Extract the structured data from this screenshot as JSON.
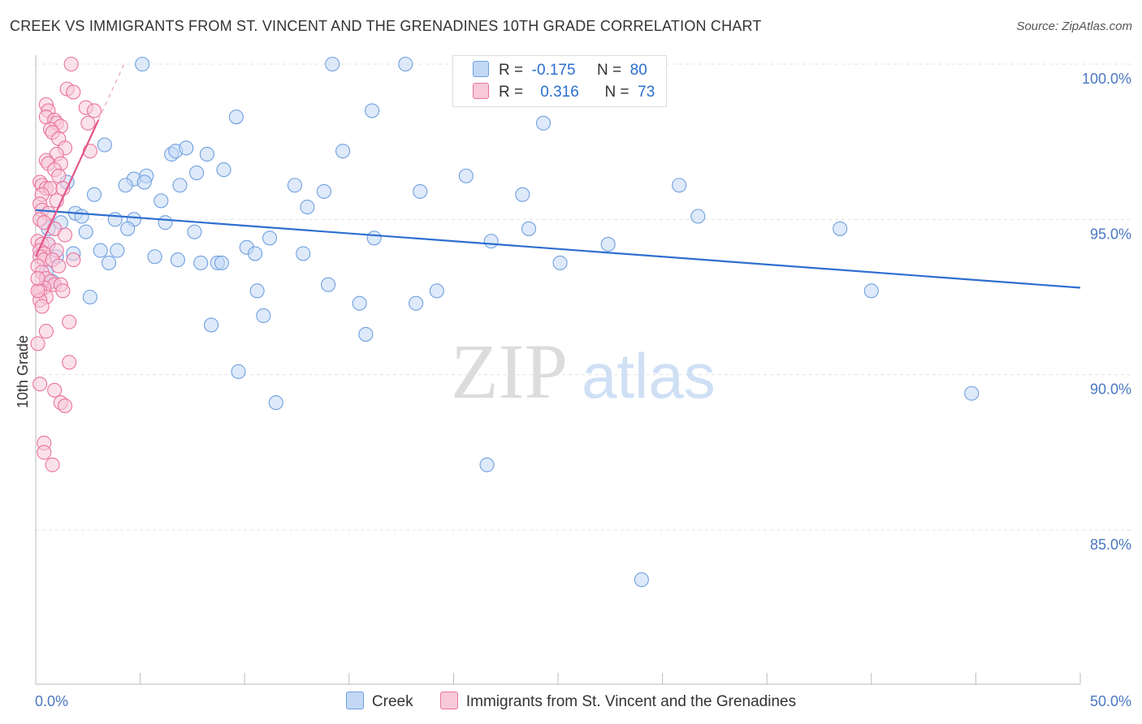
{
  "title": "CREEK VS IMMIGRANTS FROM ST. VINCENT AND THE GRENADINES 10TH GRADE CORRELATION CHART",
  "source": "Source: ZipAtlas.com",
  "watermark": {
    "zip": "ZIP",
    "atlas": "atlas"
  },
  "legend_stats": [
    {
      "r_label": "R =",
      "r_value": "-0.175",
      "n_label": "N =",
      "n_value": "80",
      "color": "#a9c8f0"
    },
    {
      "r_label": "R =",
      "r_value": "0.316",
      "n_label": "N =",
      "n_value": "73",
      "color": "#f6b6cc"
    }
  ],
  "colors": {
    "creek": "#6f9fe0",
    "creek_fill": "#c2d8f5",
    "creek_line": "#2f6fcf",
    "svg": "#e9739d",
    "svg_fill": "#f8c9d9",
    "svg_line": "#e0578b",
    "grid": "#e3e3e3",
    "axis_text": "#4a78c2"
  },
  "chart_data": {
    "type": "scatter",
    "title": "CREEK VS IMMIGRANTS FROM ST. VINCENT AND THE GRENADINES 10TH GRADE CORRELATION CHART",
    "xlabel": "",
    "ylabel": "10th Grade",
    "xlim": [
      0,
      50
    ],
    "ylim": [
      80,
      100.5
    ],
    "x_tick_labels": [
      "0.0%",
      "50.0%"
    ],
    "y_ticks": [
      85,
      90,
      95,
      100
    ],
    "y_tick_labels": [
      "85.0%",
      "90.0%",
      "95.0%",
      "100.0%"
    ],
    "grid": true,
    "legend_position": "bottom",
    "series": [
      {
        "name": "Creek",
        "trend": {
          "x": [
            0,
            50
          ],
          "y": [
            95.3,
            92.8
          ]
        },
        "points": [
          [
            5.1,
            100
          ],
          [
            14.2,
            100
          ],
          [
            17.7,
            100
          ],
          [
            21.0,
            100
          ],
          [
            22.6,
            100
          ],
          [
            9.6,
            98.3
          ],
          [
            16.1,
            98.5
          ],
          [
            24.3,
            98.1
          ],
          [
            3.3,
            97.4
          ],
          [
            6.5,
            97.1
          ],
          [
            6.7,
            97.2
          ],
          [
            7.2,
            97.3
          ],
          [
            8.2,
            97.1
          ],
          [
            9.0,
            96.6
          ],
          [
            14.7,
            97.2
          ],
          [
            6.9,
            96.1
          ],
          [
            7.7,
            96.5
          ],
          [
            4.7,
            96.3
          ],
          [
            5.3,
            96.4
          ],
          [
            5.2,
            96.2
          ],
          [
            4.3,
            96.1
          ],
          [
            12.4,
            96.1
          ],
          [
            13.8,
            95.9
          ],
          [
            18.4,
            95.9
          ],
          [
            20.6,
            96.4
          ],
          [
            23.3,
            95.8
          ],
          [
            30.8,
            96.1
          ],
          [
            2.8,
            95.8
          ],
          [
            1.5,
            96.2
          ],
          [
            6.0,
            95.6
          ],
          [
            13.0,
            95.4
          ],
          [
            31.7,
            95.1
          ],
          [
            1.9,
            95.2
          ],
          [
            2.2,
            95.1
          ],
          [
            3.8,
            95.0
          ],
          [
            4.7,
            95.0
          ],
          [
            6.2,
            94.9
          ],
          [
            4.4,
            94.7
          ],
          [
            2.4,
            94.6
          ],
          [
            7.6,
            94.6
          ],
          [
            11.2,
            94.4
          ],
          [
            16.2,
            94.4
          ],
          [
            21.8,
            94.3
          ],
          [
            23.6,
            94.7
          ],
          [
            27.4,
            94.2
          ],
          [
            38.5,
            94.7
          ],
          [
            10.1,
            94.1
          ],
          [
            1.2,
            94.9
          ],
          [
            0.6,
            94.7
          ],
          [
            0.6,
            94.2
          ],
          [
            3.1,
            94.0
          ],
          [
            3.9,
            94.0
          ],
          [
            10.5,
            93.9
          ],
          [
            12.8,
            93.9
          ],
          [
            1.0,
            93.8
          ],
          [
            1.8,
            93.9
          ],
          [
            5.7,
            93.8
          ],
          [
            6.8,
            93.7
          ],
          [
            7.9,
            93.6
          ],
          [
            8.7,
            93.6
          ],
          [
            8.9,
            93.6
          ],
          [
            25.1,
            93.6
          ],
          [
            3.5,
            93.6
          ],
          [
            0.5,
            93.3
          ],
          [
            14.0,
            92.9
          ],
          [
            10.6,
            92.7
          ],
          [
            19.2,
            92.7
          ],
          [
            40.0,
            92.7
          ],
          [
            2.6,
            92.5
          ],
          [
            18.2,
            92.3
          ],
          [
            15.5,
            92.3
          ],
          [
            10.9,
            91.9
          ],
          [
            8.4,
            91.6
          ],
          [
            15.8,
            91.3
          ],
          [
            9.7,
            90.1
          ],
          [
            11.5,
            89.1
          ],
          [
            44.8,
            89.4
          ],
          [
            21.6,
            87.1
          ],
          [
            29.0,
            83.4
          ],
          [
            0.8,
            93.0
          ]
        ]
      },
      {
        "name": "Immigrants from St. Vincent and the Grenadines",
        "trend": {
          "x": [
            0,
            3.0
          ],
          "y": [
            93.8,
            98.2
          ]
        },
        "points": [
          [
            1.7,
            100
          ],
          [
            1.5,
            99.2
          ],
          [
            1.8,
            99.1
          ],
          [
            0.5,
            98.7
          ],
          [
            0.6,
            98.5
          ],
          [
            0.5,
            98.3
          ],
          [
            2.4,
            98.6
          ],
          [
            2.8,
            98.5
          ],
          [
            0.9,
            98.2
          ],
          [
            1.0,
            98.1
          ],
          [
            1.2,
            98.0
          ],
          [
            0.7,
            97.9
          ],
          [
            0.8,
            97.8
          ],
          [
            2.5,
            98.1
          ],
          [
            1.1,
            97.6
          ],
          [
            1.4,
            97.3
          ],
          [
            2.6,
            97.2
          ],
          [
            1.0,
            97.1
          ],
          [
            0.5,
            96.9
          ],
          [
            0.6,
            96.8
          ],
          [
            1.2,
            96.8
          ],
          [
            0.9,
            96.6
          ],
          [
            1.1,
            96.4
          ],
          [
            0.2,
            96.2
          ],
          [
            0.3,
            96.1
          ],
          [
            0.5,
            96.0
          ],
          [
            0.7,
            96.0
          ],
          [
            1.3,
            96.0
          ],
          [
            0.3,
            95.8
          ],
          [
            1.0,
            95.6
          ],
          [
            0.2,
            95.5
          ],
          [
            0.3,
            95.3
          ],
          [
            0.6,
            95.2
          ],
          [
            0.2,
            95.0
          ],
          [
            0.4,
            94.9
          ],
          [
            0.9,
            94.7
          ],
          [
            1.4,
            94.5
          ],
          [
            0.1,
            94.3
          ],
          [
            0.3,
            94.2
          ],
          [
            0.6,
            94.2
          ],
          [
            0.2,
            94.0
          ],
          [
            0.4,
            93.9
          ],
          [
            1.0,
            94.0
          ],
          [
            0.2,
            93.8
          ],
          [
            0.4,
            93.7
          ],
          [
            0.8,
            93.7
          ],
          [
            1.8,
            93.7
          ],
          [
            0.1,
            93.5
          ],
          [
            1.1,
            93.5
          ],
          [
            0.3,
            93.3
          ],
          [
            0.5,
            93.1
          ],
          [
            0.7,
            93.0
          ],
          [
            0.9,
            92.9
          ],
          [
            0.4,
            92.8
          ],
          [
            1.2,
            92.9
          ],
          [
            0.2,
            92.7
          ],
          [
            1.3,
            92.7
          ],
          [
            0.5,
            92.5
          ],
          [
            0.2,
            92.4
          ],
          [
            0.3,
            92.2
          ],
          [
            1.6,
            91.7
          ],
          [
            0.5,
            91.4
          ],
          [
            0.1,
            91.0
          ],
          [
            1.6,
            90.4
          ],
          [
            0.2,
            89.7
          ],
          [
            0.9,
            89.5
          ],
          [
            1.2,
            89.1
          ],
          [
            1.4,
            89.0
          ],
          [
            0.4,
            87.8
          ],
          [
            0.4,
            87.5
          ],
          [
            0.8,
            87.1
          ],
          [
            0.1,
            92.7
          ],
          [
            0.1,
            93.1
          ]
        ]
      }
    ]
  },
  "bottom_legend": [
    "Creek",
    "Immigrants from St. Vincent and the Grenadines"
  ]
}
